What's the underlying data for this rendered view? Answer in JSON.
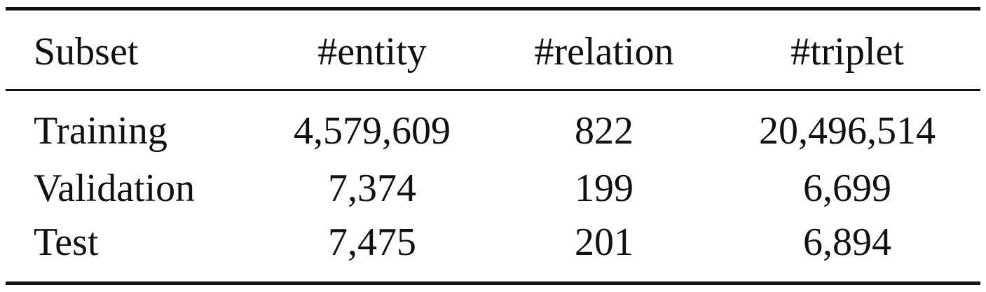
{
  "table": {
    "headers": [
      "Subset",
      "#entity",
      "#relation",
      "#triplet"
    ],
    "rows": [
      [
        "Training",
        "4,579,609",
        "822",
        "20,496,514"
      ],
      [
        "Validation",
        "7,374",
        "199",
        "6,699"
      ],
      [
        "Test",
        "7,475",
        "201",
        "6,894"
      ]
    ]
  }
}
